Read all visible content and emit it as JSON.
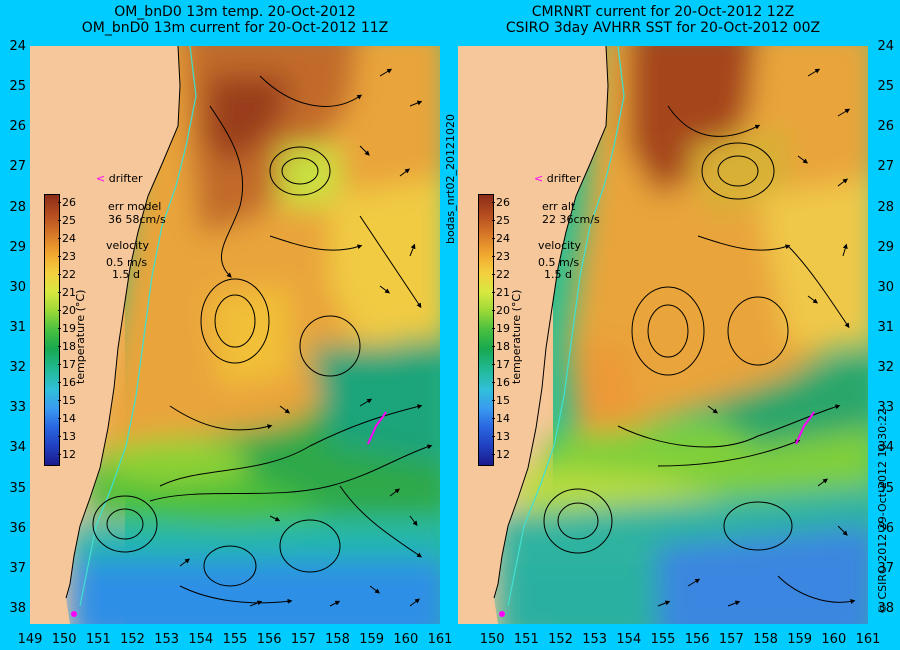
{
  "left_panel": {
    "title_line1": "OM_bnD0 13m temp. 20-Oct-2012",
    "title_line2": "OM_bnD0 13m current for 20-Oct-2012 11Z",
    "drifter_label": "drifter",
    "err_label": "err model",
    "err_value": "36 58cm/s",
    "velocity_label": "velocity",
    "velocity_scale": "0.5 m/s",
    "velocity_time": "1.5 d",
    "colorbar_title": "temperature (°C)"
  },
  "right_panel": {
    "title_line1": "CMRNRT current for 20-Oct-2012 12Z",
    "title_line2": "CSIRO 3day AVHRR SST for 20-Oct-2012 00Z",
    "drifter_label": "drifter",
    "err_label": "err alt",
    "err_value": "22 36cm/s",
    "velocity_label": "velocity",
    "velocity_scale": "0.5 m/s",
    "velocity_time": "1.5 d",
    "colorbar_title": "temperature (°C)"
  },
  "vertical_labels": {
    "mid": "bodas_nrt02_20121020",
    "right_credit": "© CSIRO 2012   29-Oct-2012 10:30:22"
  },
  "map_axes": {
    "lat_ticks": [
      "24",
      "25",
      "26",
      "27",
      "28",
      "29",
      "30",
      "31",
      "32",
      "33",
      "34",
      "35",
      "36",
      "37",
      "38"
    ],
    "lon_ticks_left": [
      "149",
      "150",
      "151",
      "152",
      "153",
      "154",
      "155",
      "156",
      "157",
      "158",
      "159",
      "160",
      "161"
    ],
    "lon_ticks_right": [
      "150",
      "151",
      "152",
      "153",
      "154",
      "155",
      "156",
      "157",
      "158",
      "159",
      "160",
      "161"
    ],
    "lat_range": [
      -38.4,
      -24
    ],
    "lon_range": [
      149,
      161
    ]
  },
  "colorbar": {
    "ticks": [
      "26",
      "25",
      "24",
      "23",
      "22",
      "21",
      "20",
      "19",
      "18",
      "17",
      "16",
      "15",
      "14",
      "13",
      "12"
    ],
    "min": 11.5,
    "max": 26.5
  },
  "colors": {
    "background": "#00ccff",
    "land": "#f6c79a",
    "drifter": "#ff00ff",
    "coastline_isobath": "#40e0d0"
  }
}
